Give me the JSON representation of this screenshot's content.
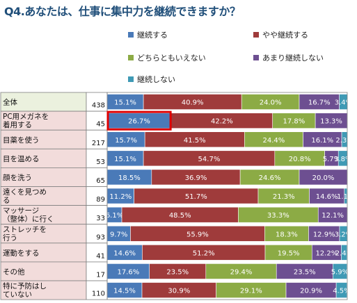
{
  "title": "Q4.あなたは、仕事に集中力を継続できますか？",
  "chart_data": {
    "type": "bar",
    "orientation": "horizontal",
    "stacked": "percent",
    "title": "Q4.あなたは、仕事に集中力を継続できますか？",
    "categories": [
      "全体",
      "PC用メガネを着用する",
      "目薬を使う",
      "目を温める",
      "顔を洗う",
      "遠くを見つめる",
      "マッサージ（整体）に行く",
      "ストレッチを行う",
      "運動をする",
      "その他",
      "特に予防はしていない"
    ],
    "category_lines": [
      [
        "全体"
      ],
      [
        "PC用メガネを",
        "着用する"
      ],
      [
        "目薬を使う"
      ],
      [
        "目を温める"
      ],
      [
        "顔を洗う"
      ],
      [
        "遠くを見つめ",
        "る"
      ],
      [
        "マッサージ",
        "（整体）に行く"
      ],
      [
        "ストレッチを",
        "行う"
      ],
      [
        "運動をする"
      ],
      [
        "その他"
      ],
      [
        "特に予防はし",
        "ていない"
      ]
    ],
    "n": [
      438,
      45,
      217,
      53,
      65,
      89,
      33,
      93,
      41,
      17,
      110
    ],
    "series": [
      {
        "name": "継続する",
        "color": "#4a7ab8",
        "values": [
          15.1,
          26.7,
          15.7,
          15.1,
          18.5,
          11.2,
          6.1,
          9.7,
          14.6,
          17.6,
          14.5
        ]
      },
      {
        "name": "やや継続する",
        "color": "#9f3b3b",
        "values": [
          40.9,
          42.2,
          41.5,
          54.7,
          36.9,
          51.7,
          48.5,
          55.9,
          51.2,
          23.5,
          30.9
        ]
      },
      {
        "name": "どちらともいえない",
        "color": "#8cab45",
        "values": [
          24.0,
          17.8,
          24.4,
          20.8,
          24.6,
          21.3,
          33.3,
          18.3,
          19.5,
          29.4,
          29.1
        ]
      },
      {
        "name": "あまり継続しない",
        "color": "#6d4f91",
        "values": [
          16.7,
          13.3,
          16.1,
          5.7,
          20.0,
          14.6,
          12.1,
          12.9,
          12.2,
          23.5,
          20.9
        ]
      },
      {
        "name": "継続しない",
        "color": "#3f9ab5",
        "values": [
          3.4,
          0,
          2.3,
          3.8,
          0,
          1.1,
          0,
          3.2,
          2.4,
          5.9,
          4.5
        ]
      }
    ],
    "xlim": [
      0,
      100
    ],
    "highlight": {
      "category": "PC用メガネを着用する",
      "series": "継続する",
      "color": "#e00000"
    },
    "label_bg_color": "#f2dcdb",
    "first_label_bg_color": "#ebf1de"
  }
}
